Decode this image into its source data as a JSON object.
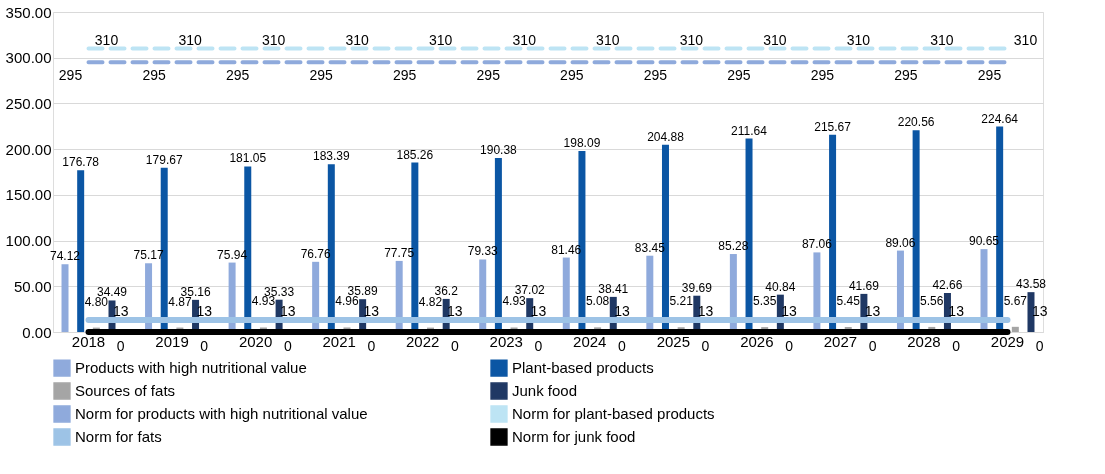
{
  "chart_data": {
    "type": "bar",
    "categories": [
      "2018",
      "2019",
      "2020",
      "2021",
      "2022",
      "2023",
      "2024",
      "2025",
      "2026",
      "2027",
      "2028",
      "2029"
    ],
    "series": [
      {
        "name": "Products with high nutritional value",
        "color": "#8faadc",
        "values": [
          74.12,
          75.17,
          75.94,
          76.76,
          77.75,
          79.33,
          81.46,
          83.45,
          85.28,
          87.06,
          89.06,
          90.65
        ]
      },
      {
        "name": "Plant-based products",
        "color": "#0b56a4",
        "values": [
          176.78,
          179.67,
          181.05,
          183.39,
          185.26,
          190.38,
          198.09,
          204.88,
          211.64,
          215.67,
          220.56,
          224.64
        ]
      },
      {
        "name": "Sources of fats",
        "color": "#a5a5a5",
        "values": [
          4.8,
          4.87,
          4.93,
          4.96,
          4.82,
          4.93,
          5.08,
          5.21,
          5.35,
          5.45,
          5.56,
          5.67
        ],
        "value_labels": [
          "4.80",
          "4.87",
          "4.93",
          "4.96",
          "4.82",
          "4.93",
          "5.08",
          "5.21",
          "5.35",
          "5.45",
          "5.56",
          "5.67"
        ]
      },
      {
        "name": "Junk food",
        "color": "#1f3864",
        "values": [
          34.49,
          35.16,
          35.33,
          35.89,
          36.2,
          37.02,
          38.41,
          39.69,
          40.84,
          41.69,
          42.66,
          43.58
        ]
      },
      {
        "name": "Norm for products with high nutritional value",
        "color": "#8faadc",
        "type": "line",
        "line_style": "dashed",
        "values": [
          295,
          295,
          295,
          295,
          295,
          295,
          295,
          295,
          295,
          295,
          295,
          295
        ]
      },
      {
        "name": "Norm for plant-based products",
        "color": "#bde4f4",
        "type": "line",
        "line_style": "dashed",
        "values": [
          310,
          310,
          310,
          310,
          310,
          310,
          310,
          310,
          310,
          310,
          310,
          310
        ]
      },
      {
        "name": "Norm for fats",
        "color": "#9dc3e6",
        "type": "line",
        "line_style": "solid",
        "values": [
          13,
          13,
          13,
          13,
          13,
          13,
          13,
          13,
          13,
          13,
          13,
          13
        ]
      },
      {
        "name": "Norm for junk food",
        "color": "#000000",
        "type": "line",
        "line_style": "solid",
        "values": [
          0,
          0,
          0,
          0,
          0,
          0,
          0,
          0,
          0,
          0,
          0,
          0
        ]
      }
    ],
    "ylim": [
      0,
      350
    ],
    "yticks": [
      {
        "value": 0,
        "label": "0.00"
      },
      {
        "value": 50,
        "label": "50.00"
      },
      {
        "value": 100,
        "label": "100.00"
      },
      {
        "value": 150,
        "label": "150.00"
      },
      {
        "value": 200,
        "label": "200.00"
      },
      {
        "value": 250,
        "label": "250.00"
      },
      {
        "value": 300,
        "label": "300.00"
      },
      {
        "value": 350,
        "label": "350.00"
      }
    ],
    "grid": "y",
    "legend": "bottom",
    "data_labels": true
  }
}
